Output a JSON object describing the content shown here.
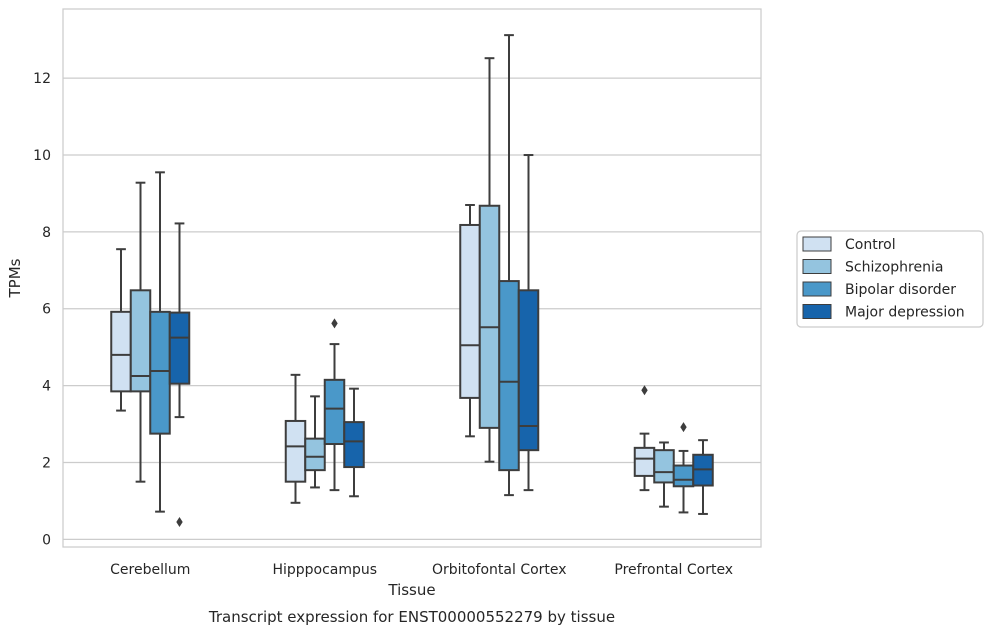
{
  "chart_data": {
    "type": "box",
    "xlabel": "Tissue",
    "ylabel": "TPMs",
    "caption": "Transcript expression for ENST00000552279 by tissue",
    "ylim": [
      -0.2,
      13.8
    ],
    "yticks": [
      0,
      2,
      4,
      6,
      8,
      10,
      12
    ],
    "grid": "horizontal",
    "legend_position": "right",
    "categories": [
      "Cerebellum",
      "Hipppocampus",
      "Orbitofontal Cortex",
      "Prefrontal Cortex"
    ],
    "series": [
      {
        "name": "Control",
        "color": "#d0e1f2",
        "boxes": [
          {
            "whisker_low": 3.35,
            "q1": 3.85,
            "median": 4.8,
            "q3": 5.92,
            "whisker_high": 7.55,
            "outliers": []
          },
          {
            "whisker_low": 0.95,
            "q1": 1.5,
            "median": 2.42,
            "q3": 3.08,
            "whisker_high": 4.28,
            "outliers": []
          },
          {
            "whisker_low": 2.68,
            "q1": 3.68,
            "median": 5.05,
            "q3": 8.18,
            "whisker_high": 8.7,
            "outliers": []
          },
          {
            "whisker_low": 1.28,
            "q1": 1.65,
            "median": 2.1,
            "q3": 2.38,
            "whisker_high": 2.75,
            "outliers": [
              3.88
            ]
          }
        ]
      },
      {
        "name": "Schizophrenia",
        "color": "#94c4df",
        "boxes": [
          {
            "whisker_low": 1.5,
            "q1": 3.85,
            "median": 4.25,
            "q3": 6.48,
            "whisker_high": 9.28,
            "outliers": []
          },
          {
            "whisker_low": 1.35,
            "q1": 1.8,
            "median": 2.15,
            "q3": 2.62,
            "whisker_high": 3.72,
            "outliers": []
          },
          {
            "whisker_low": 2.02,
            "q1": 2.9,
            "median": 5.52,
            "q3": 8.68,
            "whisker_high": 12.52,
            "outliers": []
          },
          {
            "whisker_low": 0.85,
            "q1": 1.48,
            "median": 1.75,
            "q3": 2.32,
            "whisker_high": 2.52,
            "outliers": []
          }
        ]
      },
      {
        "name": "Bipolar disorder",
        "color": "#4a98c9",
        "boxes": [
          {
            "whisker_low": 0.72,
            "q1": 2.75,
            "median": 4.38,
            "q3": 5.92,
            "whisker_high": 9.55,
            "outliers": []
          },
          {
            "whisker_low": 1.28,
            "q1": 2.48,
            "median": 3.4,
            "q3": 4.15,
            "whisker_high": 5.08,
            "outliers": [
              5.62
            ]
          },
          {
            "whisker_low": 1.15,
            "q1": 1.8,
            "median": 4.1,
            "q3": 6.72,
            "whisker_high": 13.12,
            "outliers": []
          },
          {
            "whisker_low": 0.7,
            "q1": 1.38,
            "median": 1.55,
            "q3": 1.92,
            "whisker_high": 2.3,
            "outliers": [
              2.92
            ]
          }
        ]
      },
      {
        "name": "Major depression",
        "color": "#1764ab",
        "boxes": [
          {
            "whisker_low": 3.18,
            "q1": 4.05,
            "median": 5.25,
            "q3": 5.9,
            "whisker_high": 8.22,
            "outliers": [
              0.45
            ]
          },
          {
            "whisker_low": 1.12,
            "q1": 1.88,
            "median": 2.55,
            "q3": 3.05,
            "whisker_high": 3.92,
            "outliers": []
          },
          {
            "whisker_low": 1.28,
            "q1": 2.32,
            "median": 2.95,
            "q3": 6.48,
            "whisker_high": 10.0,
            "outliers": []
          },
          {
            "whisker_low": 0.66,
            "q1": 1.4,
            "median": 1.82,
            "q3": 2.2,
            "whisker_high": 2.58,
            "outliers": []
          }
        ]
      }
    ]
  }
}
